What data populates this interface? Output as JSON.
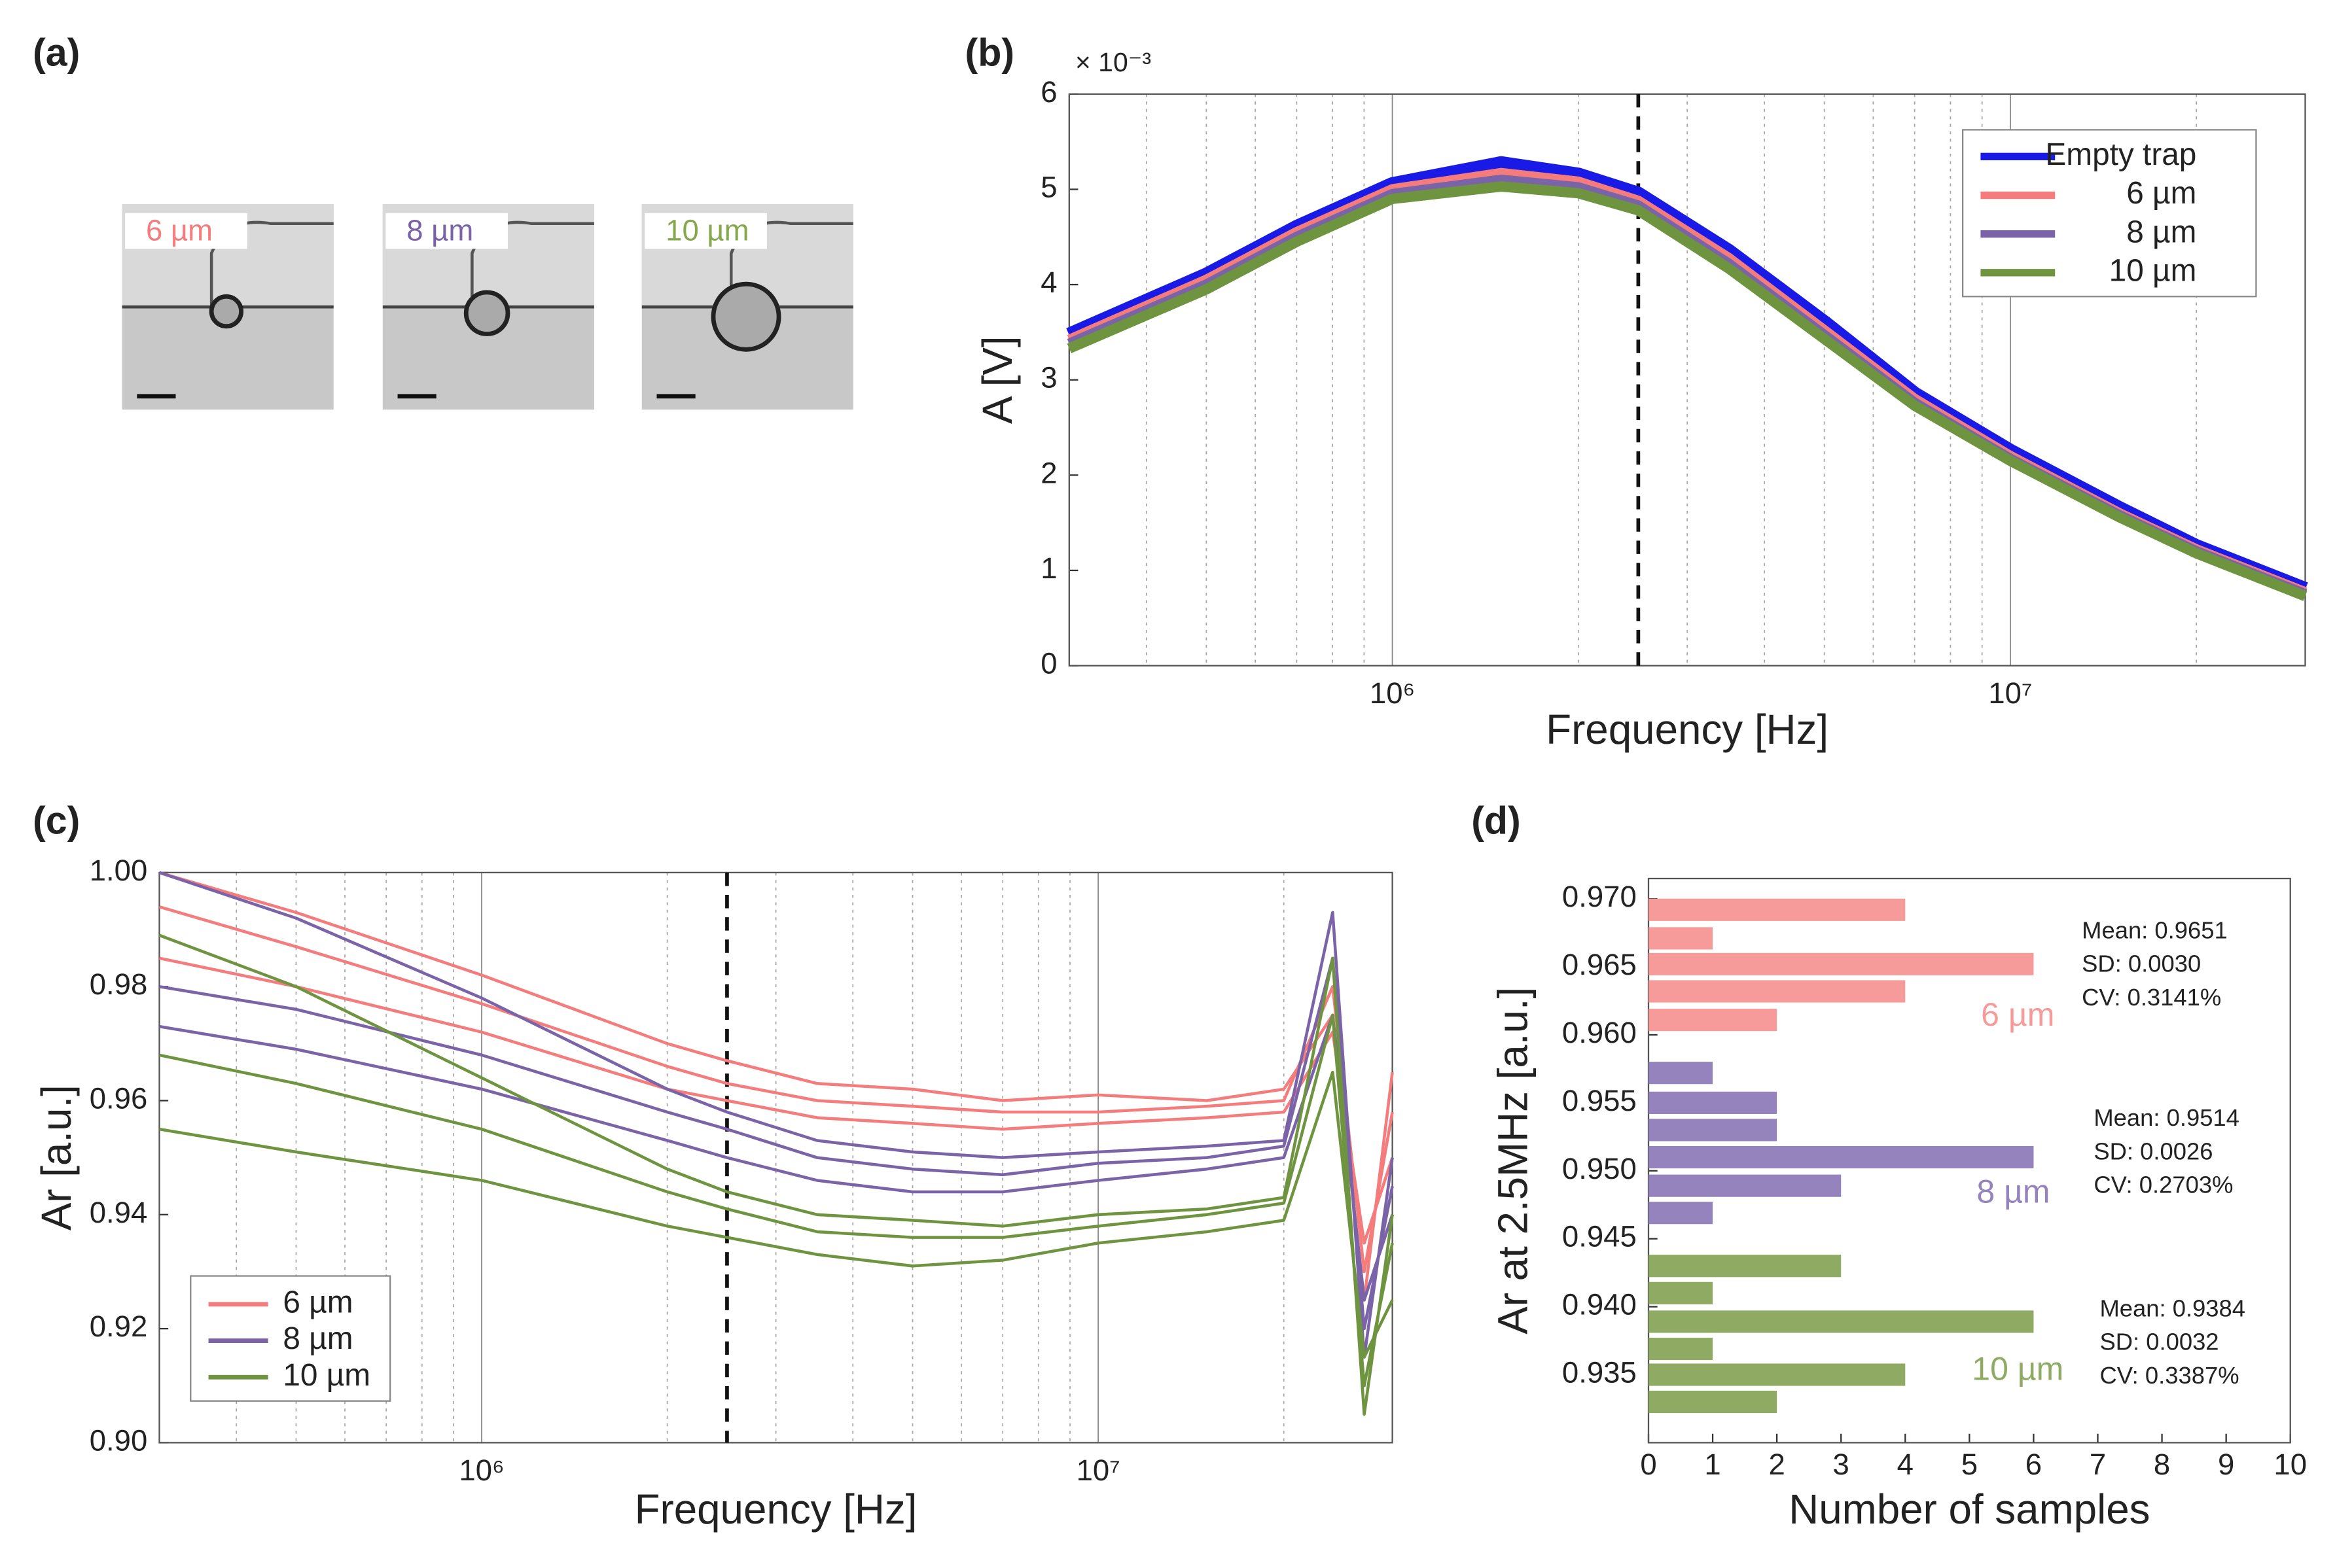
{
  "panel_labels": [
    "(a)",
    "(b)",
    "(c)",
    "(d)"
  ],
  "images": {
    "labels": [
      "6 µm",
      "8 µm",
      "10 µm"
    ],
    "colors": [
      "#f47c7c",
      "#7b63a8",
      "#86a84d"
    ]
  },
  "chart_data": [
    {
      "type": "line",
      "log_x": true,
      "y_multiplier": "× 10⁻³",
      "xlabel": "Frequency [Hz]",
      "ylabel": "A [V]",
      "xlim": [
        300000,
        30000000
      ],
      "ylim": [
        0,
        6
      ],
      "xticks": [
        {
          "value": 1000000,
          "label": "10⁶"
        },
        {
          "value": 10000000,
          "label": "10⁷"
        }
      ],
      "xminor": [
        400000,
        500000,
        600000,
        700000,
        800000,
        900000,
        2000000,
        3000000,
        4000000,
        5000000,
        6000000,
        7000000,
        8000000,
        9000000,
        20000000
      ],
      "yticks": [
        0,
        1,
        2,
        3,
        4,
        5,
        6
      ],
      "vline": 2500000,
      "legend": "upper right",
      "x": [
        300000,
        500000,
        700000,
        1000000,
        1500000,
        2000000,
        2500000,
        3500000,
        5000000,
        7000000,
        10000000,
        15000000,
        20000000,
        30000000
      ],
      "series": [
        {
          "name": "Empty trap",
          "color": "#1a1ae6",
          "values": [
            3.47,
            4.1,
            4.6,
            5.05,
            5.27,
            5.15,
            4.95,
            4.35,
            3.6,
            2.85,
            2.25,
            1.65,
            1.25,
            0.8
          ]
        },
        {
          "name": "6 µm",
          "color": "#f47c7c",
          "values": [
            3.42,
            4.05,
            4.55,
            5.0,
            5.17,
            5.08,
            4.88,
            4.28,
            3.52,
            2.8,
            2.2,
            1.6,
            1.22,
            0.77
          ]
        },
        {
          "name": "8 µm",
          "color": "#7b63a8",
          "values": [
            3.38,
            4.0,
            4.5,
            4.95,
            5.1,
            5.02,
            4.83,
            4.22,
            3.47,
            2.76,
            2.17,
            1.58,
            1.2,
            0.75
          ]
        },
        {
          "name": "10 µm",
          "color": "#6f9440",
          "values": [
            3.33,
            3.95,
            4.45,
            4.9,
            5.03,
            4.96,
            4.78,
            4.17,
            3.43,
            2.73,
            2.15,
            1.56,
            1.18,
            0.73
          ]
        }
      ]
    },
    {
      "type": "multiline",
      "log_x": true,
      "xlabel": "Frequency [Hz]",
      "ylabel": "Ar [a.u.]",
      "xlim": [
        300000,
        30000000
      ],
      "ylim": [
        0.9,
        1.0
      ],
      "xticks": [
        {
          "value": 1000000,
          "label": "10⁶"
        },
        {
          "value": 10000000,
          "label": "10⁷"
        }
      ],
      "xminor": [
        400000,
        500000,
        600000,
        700000,
        800000,
        900000,
        2000000,
        3000000,
        4000000,
        5000000,
        6000000,
        7000000,
        8000000,
        9000000,
        20000000
      ],
      "yticks": [
        {
          "value": 0.9,
          "label": "0.90"
        },
        0.92,
        0.94,
        0.96,
        0.98,
        {
          "value": 1.0,
          "label": "1.00"
        }
      ],
      "vline": 2500000,
      "legend": "lower left",
      "x": [
        300000,
        500000,
        1000000,
        2000000,
        2500000,
        3500000,
        5000000,
        7000000,
        10000000,
        15000000,
        20000000,
        24000000,
        27000000,
        30000000
      ],
      "series": [
        {
          "name": "6 µm",
          "color": "#f47c7c",
          "values": [
            [
              1.0,
              0.993,
              0.982,
              0.97,
              0.967,
              0.963,
              0.962,
              0.96,
              0.961,
              0.96,
              0.962,
              0.975,
              0.925,
              0.965
            ],
            [
              0.994,
              0.987,
              0.977,
              0.966,
              0.963,
              0.96,
              0.959,
              0.958,
              0.958,
              0.959,
              0.96,
              0.98,
              0.93,
              0.958
            ],
            [
              0.985,
              0.98,
              0.972,
              0.962,
              0.96,
              0.957,
              0.956,
              0.955,
              0.956,
              0.957,
              0.958,
              0.972,
              0.935,
              0.95
            ]
          ]
        },
        {
          "name": "8 µm",
          "color": "#7b63a8",
          "values": [
            [
              1.0,
              0.992,
              0.978,
              0.962,
              0.958,
              0.953,
              0.951,
              0.95,
              0.951,
              0.952,
              0.953,
              0.993,
              0.915,
              0.95
            ],
            [
              0.98,
              0.976,
              0.968,
              0.958,
              0.955,
              0.95,
              0.948,
              0.947,
              0.949,
              0.95,
              0.952,
              0.985,
              0.92,
              0.945
            ],
            [
              0.973,
              0.969,
              0.962,
              0.953,
              0.95,
              0.946,
              0.944,
              0.944,
              0.946,
              0.948,
              0.95,
              0.975,
              0.925,
              0.94
            ]
          ]
        },
        {
          "name": "10 µm",
          "color": "#6f9440",
          "values": [
            [
              0.989,
              0.98,
              0.964,
              0.948,
              0.944,
              0.94,
              0.939,
              0.938,
              0.94,
              0.941,
              0.943,
              0.985,
              0.905,
              0.94
            ],
            [
              0.968,
              0.963,
              0.955,
              0.944,
              0.941,
              0.937,
              0.936,
              0.936,
              0.938,
              0.94,
              0.942,
              0.975,
              0.91,
              0.935
            ],
            [
              0.955,
              0.951,
              0.946,
              0.938,
              0.936,
              0.933,
              0.931,
              0.932,
              0.935,
              0.937,
              0.939,
              0.965,
              0.915,
              0.925
            ]
          ]
        }
      ]
    },
    {
      "type": "barh",
      "xlabel": "Number of samples",
      "ylabel": "Ar at 2.5MHz [a.u.]",
      "xlim": [
        0,
        10
      ],
      "ylim": [
        0.93,
        0.9715
      ],
      "xticks": [
        0,
        1,
        2,
        3,
        4,
        5,
        6,
        7,
        8,
        9,
        10
      ],
      "yticks": [
        {
          "value": 0.935,
          "label": "0.935"
        },
        {
          "value": 0.94,
          "label": "0.940"
        },
        0.945,
        {
          "value": 0.95,
          "label": "0.950"
        },
        0.955,
        {
          "value": 0.96,
          "label": "0.960"
        },
        0.965,
        {
          "value": 0.97,
          "label": "0.970"
        }
      ],
      "series": [
        {
          "name": "6 µm",
          "color": "#f79a9a",
          "y": [
            0.9692,
            0.9671,
            0.9652,
            0.9632,
            0.9611
          ],
          "values": [
            4,
            1,
            6,
            4,
            2
          ]
        },
        {
          "name": "8 µm",
          "color": "#9583bd",
          "y": [
            0.9572,
            0.955,
            0.953,
            0.951,
            0.9489,
            0.9469
          ],
          "values": [
            1,
            2,
            2,
            6,
            3,
            1
          ]
        },
        {
          "name": "10 µm",
          "color": "#8fab63",
          "y": [
            0.943,
            0.941,
            0.9389,
            0.9369,
            0.935,
            0.933
          ],
          "values": [
            3,
            1,
            6,
            1,
            4,
            2
          ]
        }
      ],
      "annotations": [
        [
          "Mean: 0.9651",
          "SD: 0.0030",
          "CV: 0.3141%"
        ],
        [
          "Mean: 0.9514",
          "SD: 0.0026",
          "CV: 0.2703%"
        ],
        [
          "Mean: 0.9384",
          "SD: 0.0032",
          "CV: 0.3387%"
        ]
      ]
    }
  ]
}
